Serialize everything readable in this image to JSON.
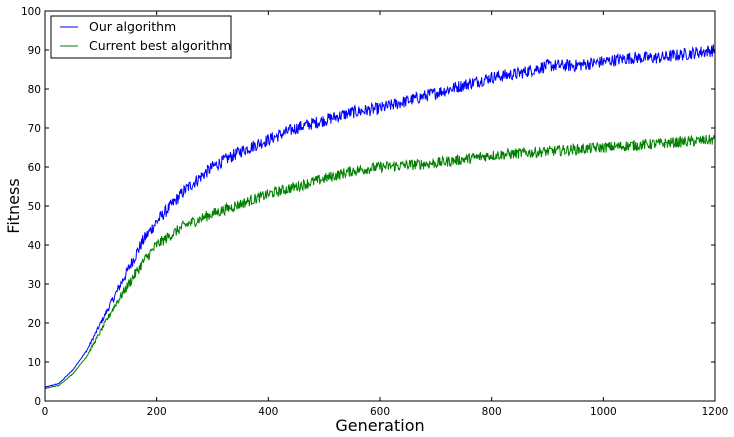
{
  "chart_data": {
    "type": "line",
    "title": "",
    "xlabel": "Generation",
    "ylabel": "Fitness",
    "xlim": [
      0,
      1200
    ],
    "ylim": [
      0,
      100
    ],
    "xticks": [
      0,
      200,
      400,
      600,
      800,
      1000,
      1200
    ],
    "yticks": [
      0,
      10,
      20,
      30,
      40,
      50,
      60,
      70,
      80,
      90,
      100
    ],
    "grid": false,
    "legend_position": "upper left",
    "x": [
      0,
      25,
      50,
      75,
      100,
      125,
      150,
      175,
      200,
      250,
      300,
      350,
      400,
      450,
      500,
      550,
      600,
      650,
      700,
      750,
      800,
      850,
      900,
      950,
      1000,
      1050,
      1100,
      1150,
      1200
    ],
    "series": [
      {
        "name": "Our algorithm",
        "color": "#0000ff",
        "values": [
          3.5,
          4.5,
          8,
          13,
          20,
          27,
          34,
          41,
          46,
          54,
          60,
          64,
          67,
          70,
          72,
          74,
          75,
          77,
          79,
          81,
          83,
          84,
          86,
          86,
          87,
          88,
          88,
          89,
          90
        ],
        "noise": 1.6
      },
      {
        "name": "Current best algorithm",
        "color": "#008000",
        "values": [
          3.2,
          4,
          7,
          11.5,
          18,
          24.5,
          30,
          35.5,
          40,
          45,
          48,
          50.5,
          53,
          55,
          57,
          59,
          60,
          60.5,
          61,
          62,
          63,
          63.5,
          64,
          64.5,
          65,
          65.5,
          66,
          66.5,
          67
        ],
        "noise": 1.4
      }
    ]
  }
}
